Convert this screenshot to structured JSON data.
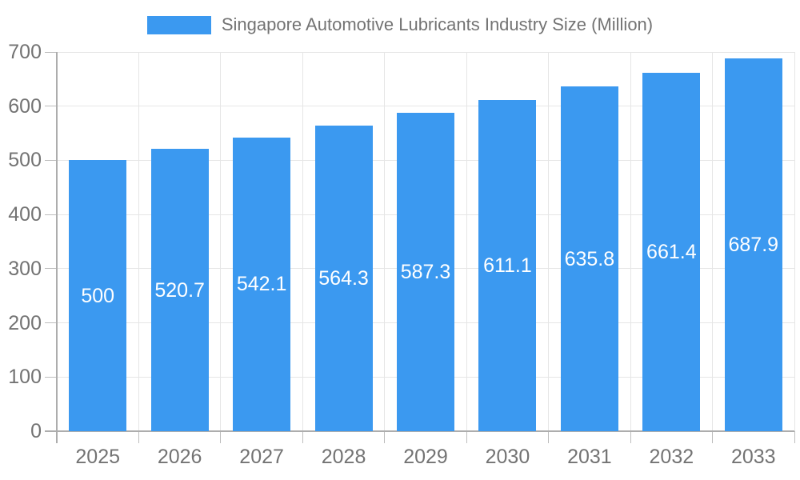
{
  "legend": {
    "label": "Singapore Automotive Lubricants Industry Size (Million)"
  },
  "chart_data": {
    "type": "bar",
    "title": "Singapore Automotive Lubricants Industry Size (Million)",
    "categories": [
      "2025",
      "2026",
      "2027",
      "2028",
      "2029",
      "2030",
      "2031",
      "2032",
      "2033"
    ],
    "values": [
      500,
      520.7,
      542.1,
      564.3,
      587.3,
      611.1,
      635.8,
      661.4,
      687.9
    ],
    "value_labels": [
      "500",
      "520.7",
      "542.1",
      "564.3",
      "587.3",
      "611.1",
      "635.8",
      "661.4",
      "687.9"
    ],
    "xlabel": "",
    "ylabel": "",
    "ylim": [
      0,
      700
    ],
    "yticks": [
      0,
      100,
      200,
      300,
      400,
      500,
      600,
      700
    ],
    "grid": true,
    "legend_position": "top",
    "colors": {
      "bar": "#3B99F0",
      "bar_label": "#FFFFFF",
      "axis_text": "#737373",
      "grid_line": "#E6E6E6",
      "axis_line": "#ADADAD",
      "tick": "#BDBDBD",
      "background": "#FFFFFF"
    }
  }
}
